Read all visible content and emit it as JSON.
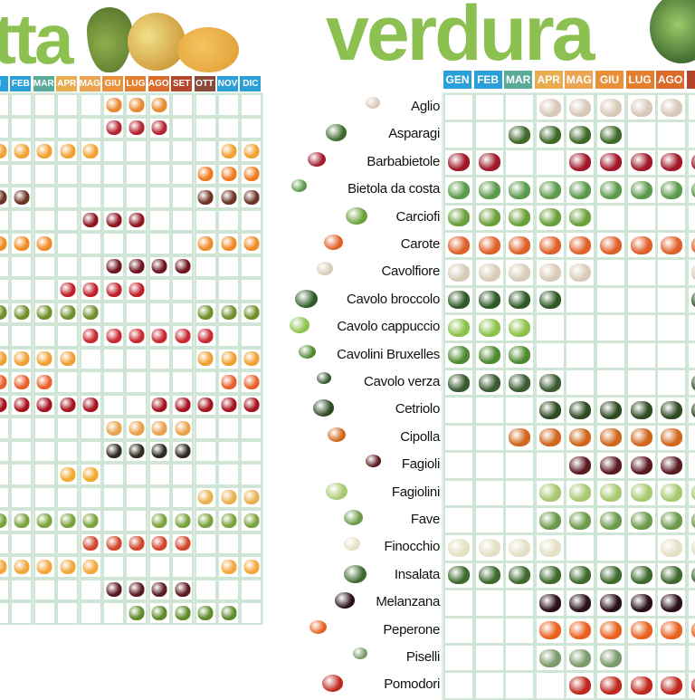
{
  "frutta": {
    "title": "tta",
    "months": [
      "GEN",
      "FEB",
      "MAR",
      "APR",
      "MAG",
      "GIU",
      "LUG",
      "AGO",
      "SET",
      "OTT",
      "NOV",
      "DIC"
    ],
    "visible_months": [
      "N",
      "FEB",
      "MAR",
      "APR",
      "MAG",
      "GIU",
      "LUG",
      "AGO",
      "SET",
      "OTT",
      "NOV",
      "DIC"
    ],
    "header_colors": [
      "#2a9fd8",
      "#2a9fd8",
      "#5aaa9a",
      "#e9ad50",
      "#eba552",
      "#e8913a",
      "#e57f30",
      "#dc6a2a",
      "#b5452a",
      "#8a4a3a",
      "#2a9fd8",
      "#2a9fd8"
    ],
    "items": [
      {
        "icon": "apricot-icon",
        "color": "#e8892e",
        "months": [
          "GIU",
          "LUG",
          "AGO"
        ]
      },
      {
        "icon": "watermelon-icon",
        "color": "#b4262f",
        "months": [
          "GIU",
          "LUG",
          "AGO"
        ]
      },
      {
        "icon": "orange-icon",
        "color": "#f2a030",
        "months": [
          "GEN",
          "FEB",
          "MAR",
          "APR",
          "MAG",
          "NOV",
          "DIC"
        ]
      },
      {
        "icon": "persimmon-icon",
        "color": "#ee7a1e",
        "months": [
          "OTT",
          "NOV",
          "DIC"
        ]
      },
      {
        "icon": "chestnut-icon",
        "color": "#6b3424",
        "months": [
          "GEN",
          "FEB",
          "OTT",
          "NOV",
          "DIC"
        ]
      },
      {
        "icon": "cherry-icon",
        "color": "#8e1420",
        "months": [
          "MAG",
          "GIU",
          "LUG"
        ]
      },
      {
        "icon": "clementine-icon",
        "color": "#f08a24",
        "months": [
          "GEN",
          "FEB",
          "MAR",
          "OTT",
          "NOV",
          "DIC"
        ]
      },
      {
        "icon": "fig-icon",
        "color": "#6e1420",
        "months": [
          "GIU",
          "LUG",
          "AGO",
          "SET"
        ]
      },
      {
        "icon": "strawberry-icon",
        "color": "#c0202a",
        "months": [
          "APR",
          "MAG",
          "GIU",
          "LUG"
        ]
      },
      {
        "icon": "kiwi-icon",
        "color": "#6f8f2a",
        "months": [
          "GEN",
          "FEB",
          "MAR",
          "APR",
          "MAG",
          "OTT",
          "NOV",
          "DIC"
        ]
      },
      {
        "icon": "raspberry-icon",
        "color": "#c82830",
        "months": [
          "MAG",
          "GIU",
          "LUG",
          "AGO",
          "SET",
          "OTT"
        ]
      },
      {
        "icon": "mandarin-icon",
        "color": "#f0a030",
        "months": [
          "GEN",
          "FEB",
          "MAR",
          "APR",
          "OTT",
          "NOV",
          "DIC"
        ]
      },
      {
        "icon": "tangerine-icon",
        "color": "#e8602a",
        "months": [
          "GEN",
          "FEB",
          "MAR",
          "NOV",
          "DIC"
        ]
      },
      {
        "icon": "apple-icon",
        "color": "#a5121e",
        "months": [
          "GEN",
          "FEB",
          "MAR",
          "APR",
          "MAG",
          "AGO",
          "SET",
          "OTT",
          "NOV",
          "DIC"
        ]
      },
      {
        "icon": "melon-icon",
        "color": "#eaa04a",
        "months": [
          "GIU",
          "LUG",
          "AGO",
          "SET"
        ]
      },
      {
        "icon": "blackberry-icon",
        "color": "#2d2a20",
        "months": [
          "GIU",
          "LUG",
          "AGO",
          "SET"
        ]
      },
      {
        "icon": "loquat-icon",
        "color": "#f2a82a",
        "months": [
          "APR",
          "MAG"
        ]
      },
      {
        "icon": "walnut-icon",
        "color": "#e8b050",
        "months": [
          "OTT",
          "NOV",
          "DIC"
        ]
      },
      {
        "icon": "pear-icon",
        "color": "#7aa23a",
        "months": [
          "GEN",
          "FEB",
          "MAR",
          "APR",
          "MAG",
          "AGO",
          "SET",
          "OTT",
          "NOV",
          "DIC"
        ]
      },
      {
        "icon": "peach-icon",
        "color": "#d2452a",
        "months": [
          "MAG",
          "GIU",
          "LUG",
          "AGO",
          "SET"
        ]
      },
      {
        "icon": "grapefruit-icon",
        "color": "#f3a63a",
        "months": [
          "GEN",
          "FEB",
          "MAR",
          "APR",
          "MAG",
          "NOV",
          "DIC"
        ]
      },
      {
        "icon": "plum-icon",
        "color": "#5a1a22",
        "months": [
          "GIU",
          "LUG",
          "AGO",
          "SET"
        ]
      },
      {
        "icon": "grapes-icon",
        "color": "#5e8a2a",
        "months": [
          "LUG",
          "AGO",
          "SET",
          "OTT",
          "NOV"
        ]
      }
    ]
  },
  "verdura": {
    "title": "verdura",
    "months": [
      "GEN",
      "FEB",
      "MAR",
      "APR",
      "MAG",
      "GIU",
      "LUG",
      "AGO",
      "S"
    ],
    "header_colors": [
      "#2a9fd8",
      "#2a9fd8",
      "#5aaa9a",
      "#e9ad50",
      "#eba552",
      "#e8913a",
      "#e57f30",
      "#dc6a2a",
      "#b5452a"
    ],
    "items": [
      {
        "label": "Aglio",
        "icon": "garlic-icon",
        "color": "#d8c8b8",
        "months": [
          "APR",
          "MAG",
          "GIU",
          "LUG",
          "AGO"
        ]
      },
      {
        "label": "Asparagi",
        "icon": "asparagus-icon",
        "color": "#3d6a2a",
        "months": [
          "MAR",
          "APR",
          "MAG",
          "GIU"
        ]
      },
      {
        "label": "Barbabietole",
        "icon": "beetroot-icon",
        "color": "#a0182a",
        "months": [
          "GEN",
          "FEB",
          "MAG",
          "GIU",
          "LUG",
          "AGO",
          "S"
        ]
      },
      {
        "label": "Bietola da costa",
        "icon": "chard-icon",
        "color": "#5a9a4a",
        "months": [
          "GEN",
          "FEB",
          "MAR",
          "APR",
          "MAG",
          "GIU",
          "LUG",
          "AGO",
          "S"
        ]
      },
      {
        "label": "Carciofi",
        "icon": "artichoke-icon",
        "color": "#6aa03a",
        "months": [
          "GEN",
          "FEB",
          "MAR",
          "APR",
          "MAG"
        ]
      },
      {
        "label": "Carote",
        "icon": "carrot-icon",
        "color": "#e0602a",
        "months": [
          "GEN",
          "FEB",
          "MAR",
          "APR",
          "MAG",
          "GIU",
          "LUG",
          "AGO",
          "S"
        ]
      },
      {
        "label": "Cavolfiore",
        "icon": "cauliflower-icon",
        "color": "#d8ccb8",
        "months": [
          "GEN",
          "FEB",
          "MAR",
          "APR",
          "MAG",
          "S"
        ]
      },
      {
        "label": "Cavolo broccolo",
        "icon": "broccoli-icon",
        "color": "#2e5a26",
        "months": [
          "GEN",
          "FEB",
          "MAR",
          "APR",
          "S"
        ]
      },
      {
        "label": "Cavolo cappuccio",
        "icon": "cabbage-icon",
        "color": "#8cc24a",
        "months": [
          "GEN",
          "FEB",
          "MAR"
        ]
      },
      {
        "label": "Cavolini Bruxelles",
        "icon": "brussels-sprouts-icon",
        "color": "#4e8a30",
        "months": [
          "GEN",
          "FEB",
          "MAR"
        ]
      },
      {
        "label": "Cavolo verza",
        "icon": "savoy-cabbage-icon",
        "color": "#3a5a30",
        "months": [
          "GEN",
          "FEB",
          "MAR",
          "APR",
          "S"
        ]
      },
      {
        "label": "Cetriolo",
        "icon": "cucumber-icon",
        "color": "#2e4a22",
        "months": [
          "APR",
          "MAG",
          "GIU",
          "LUG",
          "AGO",
          "S"
        ]
      },
      {
        "label": "Cipolla",
        "icon": "onion-icon",
        "color": "#d0661a",
        "months": [
          "MAR",
          "APR",
          "MAG",
          "GIU",
          "LUG",
          "AGO"
        ]
      },
      {
        "label": "Fagioli",
        "icon": "beans-icon",
        "color": "#5a1a22",
        "months": [
          "MAG",
          "GIU",
          "LUG",
          "AGO"
        ]
      },
      {
        "label": "Fagiolini",
        "icon": "green-beans-icon",
        "color": "#a8c870",
        "months": [
          "APR",
          "MAG",
          "GIU",
          "LUG",
          "AGO",
          "S"
        ]
      },
      {
        "label": "Fave",
        "icon": "broad-beans-icon",
        "color": "#6a9a4a",
        "months": [
          "APR",
          "MAG",
          "GIU",
          "LUG",
          "AGO",
          "S"
        ]
      },
      {
        "label": "Finocchio",
        "icon": "fennel-icon",
        "color": "#e4e0c4",
        "months": [
          "GEN",
          "FEB",
          "MAR",
          "APR",
          "AGO",
          "S"
        ]
      },
      {
        "label": "Insalata",
        "icon": "lettuce-icon",
        "color": "#3e6a2e",
        "months": [
          "GEN",
          "FEB",
          "MAR",
          "APR",
          "MAG",
          "GIU",
          "LUG",
          "AGO",
          "S"
        ]
      },
      {
        "label": "Melanzana",
        "icon": "eggplant-icon",
        "color": "#2a1018",
        "months": [
          "APR",
          "MAG",
          "GIU",
          "LUG",
          "AGO"
        ]
      },
      {
        "label": "Peperone",
        "icon": "pepper-icon",
        "color": "#e8621e",
        "months": [
          "APR",
          "MAG",
          "GIU",
          "LUG",
          "AGO",
          "S"
        ]
      },
      {
        "label": "Piselli",
        "icon": "peas-icon",
        "color": "#7a9a6a",
        "months": [
          "APR",
          "MAG",
          "GIU"
        ]
      },
      {
        "label": "Pomodori",
        "icon": "tomato-icon",
        "color": "#c0281e",
        "months": [
          "MAG",
          "GIU",
          "LUG",
          "AGO",
          "S"
        ]
      }
    ]
  }
}
